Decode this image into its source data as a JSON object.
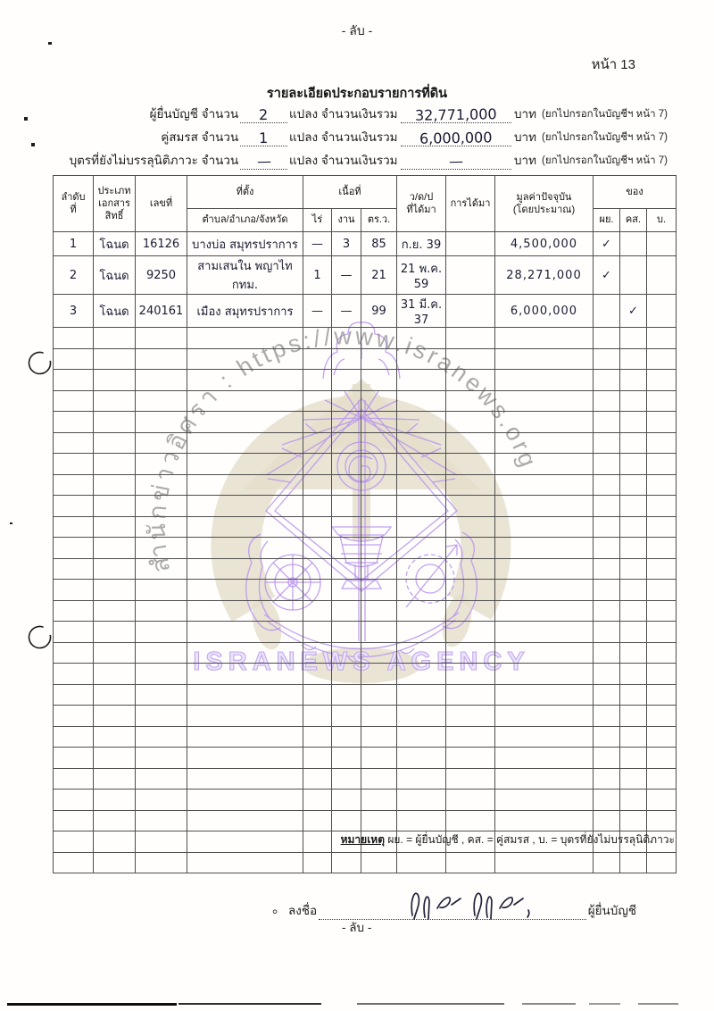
{
  "page": {
    "secret_top": "- ลับ -",
    "secret_bottom": "- ลับ -",
    "page_label": "หน้า 13",
    "title": "รายละเอียดประกอบรายการที่ดิน"
  },
  "summary": [
    {
      "label": "ผู้ยื่นบัญชี  จำนวน",
      "count": "2",
      "mid": "แปลง จำนวนเงินรวม",
      "amount": "32,771,000",
      "unit": "บาท",
      "note": "(ยกไปกรอกในบัญชีฯ หน้า 7)"
    },
    {
      "label": "คู่สมรส  จำนวน",
      "count": "1",
      "mid": "แปลง จำนวนเงินรวม",
      "amount": "6,000,000",
      "unit": "บาท",
      "note": "(ยกไปกรอกในบัญชีฯ หน้า 7)"
    },
    {
      "label": "บุตรที่ยังไม่บรรลุนิติภาวะ  จำนวน",
      "count": "—",
      "mid": "แปลง จำนวนเงินรวม",
      "amount": "—",
      "unit": "บาท",
      "note": "(ยกไปกรอกในบัญชีฯ หน้า 7)"
    }
  ],
  "table": {
    "headers": {
      "no": "ลำดับ\nที่",
      "doc_type": "ประเภท\nเอกสาร\nสิทธิ์",
      "doc_no": "เลขที่",
      "location_group": "ที่ตั้ง",
      "location_sub": "ตำบล/อำเภอ/จังหวัด",
      "area_group": "เนื้อที่",
      "rai": "ไร่",
      "ngan": "งาน",
      "wa": "ตร.ว.",
      "date": "ว/ด/ป\nที่ได้มา",
      "acquisition": "การได้มา",
      "value": "มูลค่าปัจจุบัน\n(โดยประมาณ)",
      "owner_group": "ของ",
      "py": "ผย.",
      "ks": "คส.",
      "b": "บ."
    },
    "rows": [
      {
        "no": "1",
        "doc_type": "โฉนด",
        "doc_no": "16126",
        "location": "บางบ่อ สมุทรปราการ",
        "rai": "—",
        "ngan": "3",
        "wa": "85",
        "date": "ก.ย. 39",
        "acquisition": "",
        "value": "4,500,000",
        "py": "✓",
        "ks": "",
        "b": ""
      },
      {
        "no": "2",
        "doc_type": "โฉนด",
        "doc_no": "9250",
        "location": "สามเสนใน พญาไท กทม.",
        "rai": "1",
        "ngan": "—",
        "wa": "21",
        "date": "21 พ.ค. 59",
        "acquisition": "",
        "value": "28,271,000",
        "py": "✓",
        "ks": "",
        "b": ""
      },
      {
        "no": "3",
        "doc_type": "โฉนด",
        "doc_no": "240161",
        "location": "เมือง สมุทรปราการ",
        "rai": "—",
        "ngan": "—",
        "wa": "99",
        "date": "31 มี.ค. 37",
        "acquisition": "",
        "value": "6,000,000",
        "py": "",
        "ks": "✓",
        "b": ""
      }
    ],
    "empty_row_count": 26
  },
  "footnote": {
    "lead": "หมายเหตุ",
    "text": " ผย. = ผู้ยื่นบัญชี , คส. = คู่สมรส , บ. = บุตรที่ยังไม่บรรลุนิติภาวะ"
  },
  "signature": {
    "label": "ลงชื่อ",
    "role": "ผู้ยื่นบัญชี"
  },
  "watermark": {
    "arc_text": "สำนักข่าวอิศรา : https://www.isranews.org",
    "agency_text": "ISRANEWS AGENCY",
    "purple": "#b793ec",
    "tan": "#e4ddc9",
    "gray": "#8a8a8a"
  }
}
